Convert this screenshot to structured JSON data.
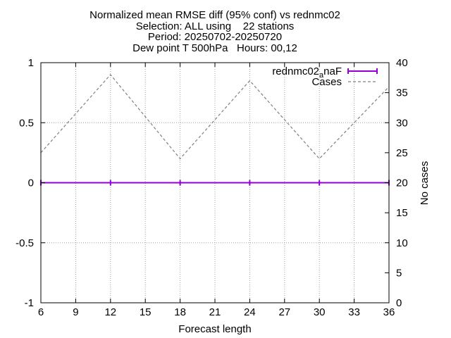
{
  "chart_data": {
    "type": "line",
    "title_lines": [
      "Normalized mean RMSE diff (95% conf) vs rednmc02",
      "Selection: ALL using    22 stations",
      "Period: 20250702-20250720",
      "Dew point T 500hPa   Hours: 00,12"
    ],
    "xlabel": "Forecast length",
    "ylabel": "",
    "y2label": "No cases",
    "xlim": [
      6,
      36
    ],
    "ylim": [
      -1,
      1
    ],
    "y2lim": [
      0,
      40
    ],
    "xticks": [
      6,
      9,
      12,
      15,
      18,
      21,
      24,
      27,
      30,
      33,
      36
    ],
    "yticks": [
      -1,
      -0.5,
      0,
      0.5,
      1
    ],
    "yticklabels": [
      "-1",
      "-0.5",
      "0",
      "0.5",
      "1"
    ],
    "y2ticks": [
      0,
      5,
      10,
      15,
      20,
      25,
      30,
      35,
      40
    ],
    "grid": true,
    "legend_position": "top-right",
    "series": [
      {
        "name": "rednmc02_anaF",
        "legend_base": "rednmc02",
        "legend_sub": "a",
        "legend_rest": "naF",
        "axis": "y",
        "color": "#9400d3",
        "style": "solid-errorbars",
        "x": [
          6,
          12,
          18,
          24,
          30,
          36
        ],
        "values": [
          0,
          0,
          0,
          0,
          0,
          0
        ]
      },
      {
        "name": "Cases",
        "axis": "y2",
        "color": "#808080",
        "style": "dashed",
        "x": [
          6,
          12,
          18,
          24,
          30,
          36
        ],
        "values": [
          25,
          38,
          24,
          37,
          24,
          36
        ]
      }
    ]
  }
}
